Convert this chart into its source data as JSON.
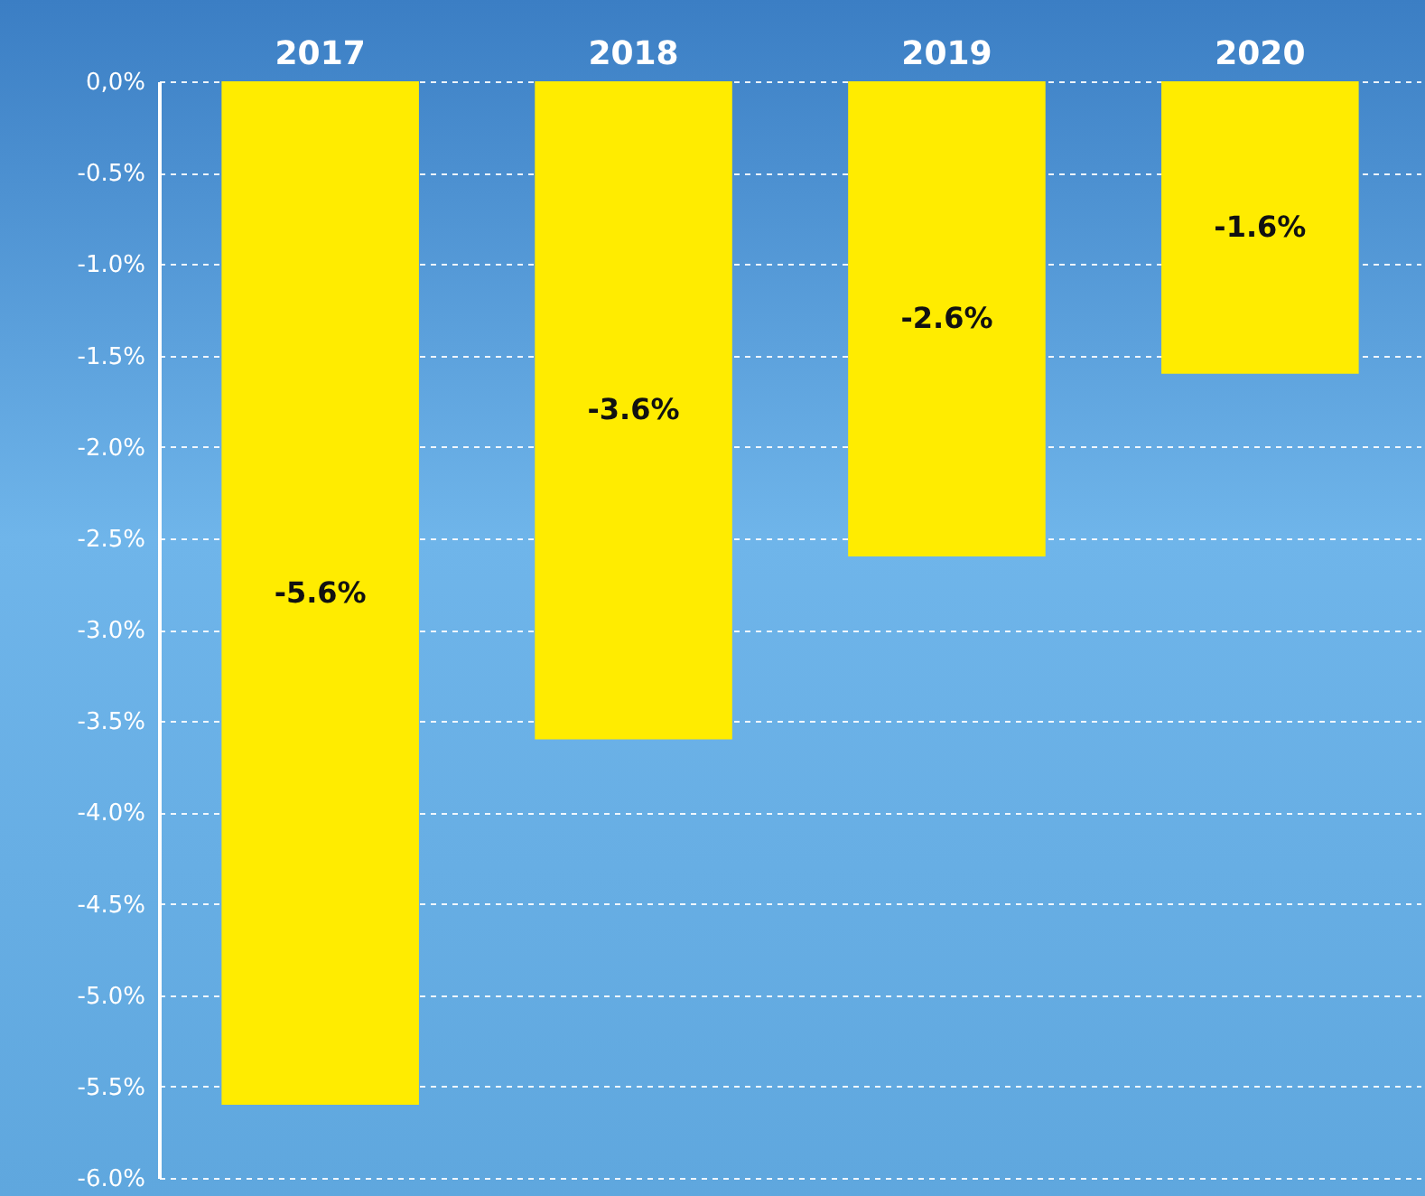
{
  "chart_data": {
    "type": "bar",
    "categories": [
      "2017",
      "2018",
      "2019",
      "2020"
    ],
    "values": [
      -5.6,
      -3.6,
      -2.6,
      -1.6
    ],
    "color": "#ffec00",
    "value_labels": [
      "-5.6%",
      "-3.6%",
      "-2.6%",
      "-1.6%"
    ],
    "ylim": [
      -6,
      0
    ],
    "yticks": [
      {
        "value": 0,
        "label": "0,0%"
      },
      {
        "value": -0.5,
        "label": "-0.5%"
      },
      {
        "value": -1,
        "label": "-1.0%"
      },
      {
        "value": -1.5,
        "label": "-1.5%"
      },
      {
        "value": -2,
        "label": "-2.0%"
      },
      {
        "value": -2.5,
        "label": "-2.5%"
      },
      {
        "value": -3,
        "label": "-3.0%"
      },
      {
        "value": -3.5,
        "label": "-3.5%"
      },
      {
        "value": -4,
        "label": "-4.0%"
      },
      {
        "value": -4.5,
        "label": "-4.5%"
      },
      {
        "value": -5,
        "label": "-5.0%"
      },
      {
        "value": -5.5,
        "label": "-5.5%"
      },
      {
        "value": -6,
        "label": "-6.0%"
      }
    ],
    "grid": "y"
  }
}
